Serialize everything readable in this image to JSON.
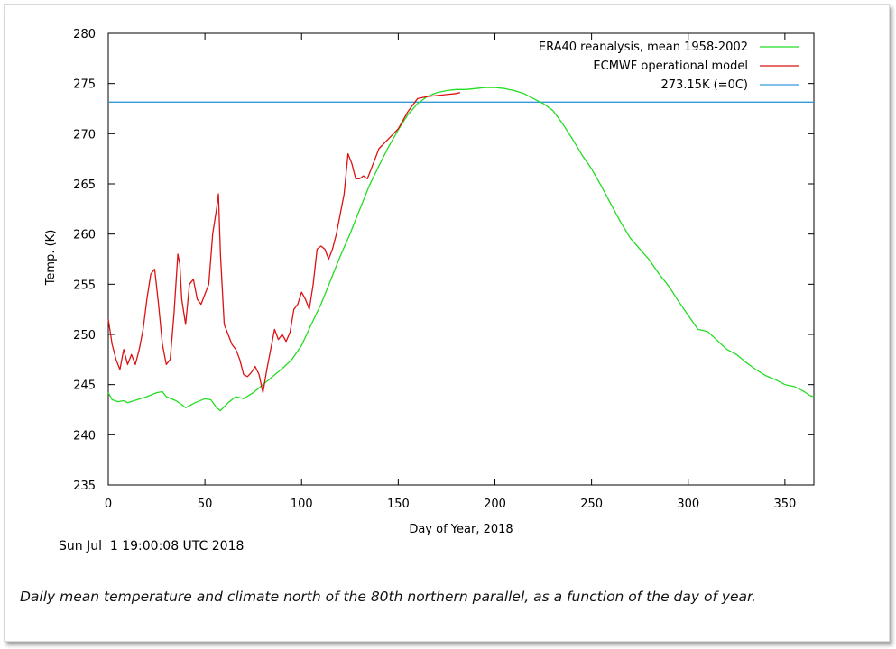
{
  "chart_data": {
    "type": "line",
    "xlabel": "Day of Year, 2018",
    "ylabel": "Temp. (K)",
    "xlim": [
      0,
      365
    ],
    "ylim": [
      235,
      280
    ],
    "xticks": [
      0,
      50,
      100,
      150,
      200,
      250,
      300,
      350
    ],
    "yticks": [
      235,
      240,
      245,
      250,
      255,
      260,
      265,
      270,
      275,
      280
    ],
    "legend_position": "top-right",
    "series": [
      {
        "name": "ERA40 reanalysis, mean 1958-2002",
        "color": "#22dd22",
        "x": [
          0,
          2,
          5,
          8,
          10,
          15,
          20,
          25,
          28,
          30,
          35,
          38,
          40,
          45,
          50,
          53,
          56,
          58,
          62,
          66,
          70,
          75,
          80,
          85,
          90,
          95,
          100,
          105,
          110,
          115,
          120,
          125,
          130,
          135,
          140,
          145,
          150,
          155,
          160,
          165,
          170,
          175,
          180,
          185,
          190,
          195,
          200,
          205,
          210,
          215,
          220,
          225,
          230,
          235,
          240,
          245,
          250,
          255,
          260,
          265,
          270,
          275,
          280,
          285,
          290,
          295,
          300,
          305,
          310,
          315,
          320,
          325,
          330,
          335,
          340,
          345,
          350,
          355,
          360,
          363,
          365
        ],
        "values": [
          244.2,
          243.5,
          243.3,
          243.4,
          243.2,
          243.5,
          243.8,
          244.2,
          244.3,
          243.8,
          243.4,
          243.0,
          242.7,
          243.2,
          243.6,
          243.5,
          242.7,
          242.4,
          243.2,
          243.8,
          243.6,
          244.2,
          245.0,
          245.8,
          246.6,
          247.5,
          248.9,
          251.0,
          253.0,
          255.4,
          257.8,
          260.0,
          262.4,
          264.8,
          266.8,
          268.7,
          270.4,
          271.9,
          273.0,
          273.7,
          274.1,
          274.3,
          274.4,
          274.4,
          274.5,
          274.6,
          274.6,
          274.5,
          274.3,
          274.0,
          273.5,
          273.0,
          272.3,
          271.0,
          269.5,
          267.9,
          266.5,
          264.8,
          263.0,
          261.2,
          259.6,
          258.5,
          257.4,
          256.0,
          254.8,
          253.3,
          251.9,
          250.5,
          250.3,
          249.4,
          248.5,
          248.0,
          247.2,
          246.5,
          245.9,
          245.5,
          245.0,
          244.8,
          244.3,
          243.9,
          243.8
        ]
      },
      {
        "name": "ECMWF operational model",
        "color": "#dd1111",
        "x": [
          0,
          2,
          4,
          6,
          8,
          10,
          12,
          14,
          16,
          18,
          20,
          22,
          24,
          26,
          28,
          30,
          32,
          34,
          36,
          37,
          38,
          40,
          42,
          44,
          46,
          48,
          50,
          52,
          54,
          56,
          57,
          58,
          60,
          62,
          64,
          66,
          68,
          70,
          72,
          74,
          76,
          78,
          80,
          82,
          84,
          86,
          88,
          90,
          92,
          94,
          96,
          98,
          100,
          102,
          104,
          106,
          108,
          110,
          112,
          114,
          116,
          118,
          120,
          122,
          124,
          126,
          128,
          130,
          132,
          134,
          136,
          138,
          140,
          145,
          150,
          155,
          160,
          165,
          170,
          175,
          180,
          182
        ],
        "values": [
          251.5,
          249.0,
          247.5,
          246.5,
          248.5,
          247.0,
          248.0,
          247.0,
          248.5,
          250.5,
          253.5,
          256.0,
          256.5,
          253.0,
          249.0,
          247.0,
          247.5,
          252.0,
          258.0,
          257.0,
          253.5,
          251.0,
          255.0,
          255.5,
          253.5,
          253.0,
          254.0,
          255.0,
          260.0,
          262.5,
          264.0,
          258.0,
          251.0,
          250.0,
          249.0,
          248.5,
          247.5,
          246.0,
          245.8,
          246.2,
          246.8,
          246.0,
          244.2,
          246.5,
          248.5,
          250.5,
          249.5,
          250.0,
          249.3,
          250.2,
          252.5,
          253.0,
          254.2,
          253.5,
          252.5,
          255.0,
          258.5,
          258.8,
          258.5,
          257.5,
          258.5,
          260.0,
          262.0,
          264.0,
          268.0,
          267.0,
          265.5,
          265.5,
          265.8,
          265.5,
          266.5,
          267.5,
          268.5,
          269.5,
          270.5,
          272.2,
          273.5,
          273.7,
          273.8,
          273.9,
          274.0,
          274.1
        ]
      },
      {
        "name": "273.15K (=0C)",
        "color": "#3399dd",
        "x": [
          0,
          365
        ],
        "values": [
          273.15,
          273.15
        ]
      }
    ]
  },
  "timestamp": "Sun Jul  1 19:00:08 UTC 2018",
  "caption": "Daily mean temperature and climate north of the 80th northern parallel, as a function of the day of year."
}
